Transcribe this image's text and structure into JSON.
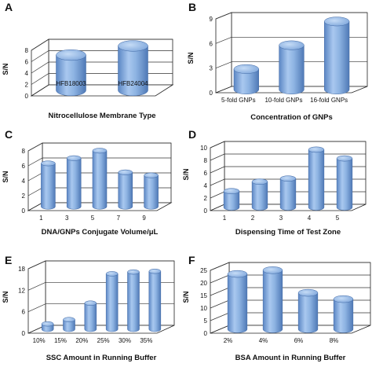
{
  "chart_data": [
    {
      "type": "bar",
      "panel_label": "A",
      "categories": [
        "HFB18003",
        "HFB24004"
      ],
      "values": [
        6.2,
        7.8
      ],
      "xlabel": "Nitrocellulose Membrane Type",
      "ylabel": "S/N",
      "ylim": [
        0,
        8
      ],
      "yticks": [
        0,
        2,
        4,
        6,
        8
      ],
      "grid": true,
      "category_labels_inside": true,
      "bar_color": "#8db3e2"
    },
    {
      "type": "bar",
      "panel_label": "B",
      "categories": [
        "5-fold GNPs",
        "10-fold GNPs",
        "16-fold GNPs"
      ],
      "values": [
        2.5,
        5.4,
        8.3
      ],
      "xlabel": "Concentration of GNPs",
      "ylabel": "S/N",
      "ylim": [
        0,
        9
      ],
      "yticks": [
        0,
        3,
        6,
        9
      ],
      "grid": true,
      "bar_color": "#8db3e2"
    },
    {
      "type": "bar",
      "panel_label": "C",
      "categories": [
        "1",
        "3",
        "5",
        "7",
        "9"
      ],
      "values": [
        5.8,
        6.5,
        7.5,
        4.6,
        4.2
      ],
      "xlabel": "DNA/GNPs Conjugate Volume/μL",
      "ylabel": "S/N",
      "ylim": [
        0,
        8
      ],
      "yticks": [
        0,
        2,
        4,
        6,
        8
      ],
      "grid": true,
      "bar_color": "#8db3e2"
    },
    {
      "type": "bar",
      "panel_label": "D",
      "categories": [
        "1",
        "2",
        "3",
        "4",
        "5"
      ],
      "values": [
        2.6,
        4.1,
        4.6,
        9.2,
        7.8
      ],
      "xlabel": "Dispensing Time of Test Zone",
      "ylabel": "S/N",
      "ylim": [
        0,
        10
      ],
      "yticks": [
        0,
        2,
        4,
        6,
        8,
        10
      ],
      "grid": true,
      "bar_color": "#8db3e2"
    },
    {
      "type": "bar",
      "panel_label": "E",
      "categories": [
        "10%",
        "15%",
        "20%",
        "25%",
        "30%",
        "35%"
      ],
      "values": [
        1.5,
        2.7,
        7.3,
        15.5,
        16.0,
        16.2
      ],
      "xlabel": "SSC Amount in Running Buffer",
      "ylabel": "S/N",
      "ylim": [
        0,
        18
      ],
      "yticks": [
        0,
        6,
        12,
        18
      ],
      "grid": true,
      "bar_color": "#8db3e2"
    },
    {
      "type": "bar",
      "panel_label": "F",
      "categories": [
        "2%",
        "4%",
        "6%",
        "8%"
      ],
      "values": [
        22,
        23.5,
        14.5,
        12
      ],
      "xlabel": "BSA Amount in Running Buffer",
      "ylabel": "S/N",
      "ylim": [
        0,
        25
      ],
      "yticks": [
        0,
        5,
        10,
        15,
        20,
        25
      ],
      "grid": true,
      "bar_color": "#8db3e2"
    }
  ]
}
